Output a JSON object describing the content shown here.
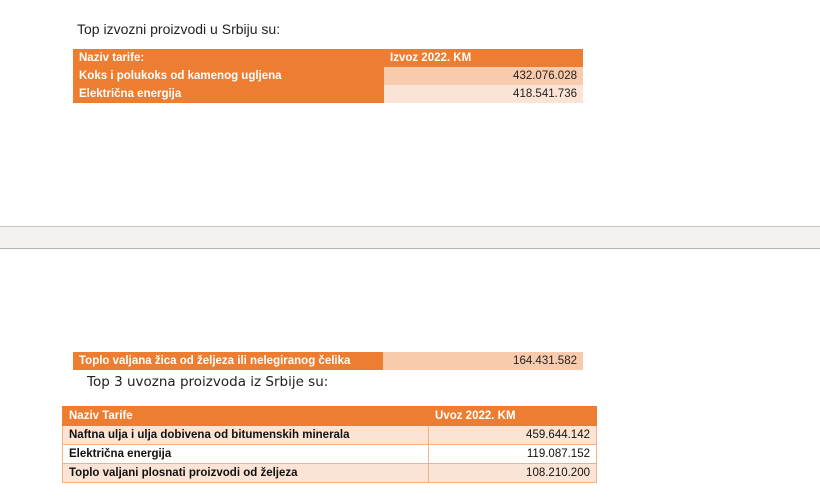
{
  "export_section": {
    "title": "Top izvozni proizvodi u Srbiju su:",
    "headers": [
      "Naziv tarife:",
      "Izvoz 2022. KM"
    ],
    "rows": [
      {
        "name": "Koks i polukoks  od kamenog ugljena",
        "value": "432.076.028"
      },
      {
        "name": "Električna  energija",
        "value": "418.541.736"
      },
      {
        "name": "Toplo valjana  žica od željeza ili nelegiranog čelika",
        "value": "164.431.582"
      }
    ]
  },
  "import_section": {
    "title": "Top 3 uvozna proizvoda iz Srbije su:",
    "headers": [
      "Naziv Tarife",
      "Uvoz 2022. KM"
    ],
    "rows": [
      {
        "name": "Naftna ulja i ulja dobivena od bitumenskih minerala",
        "value": "459.644.142"
      },
      {
        "name": "Električna energija",
        "value": "119.087.152"
      },
      {
        "name": "Toplo valjani  plosnati proizvodi od željeza",
        "value": "108.210.200"
      }
    ]
  }
}
